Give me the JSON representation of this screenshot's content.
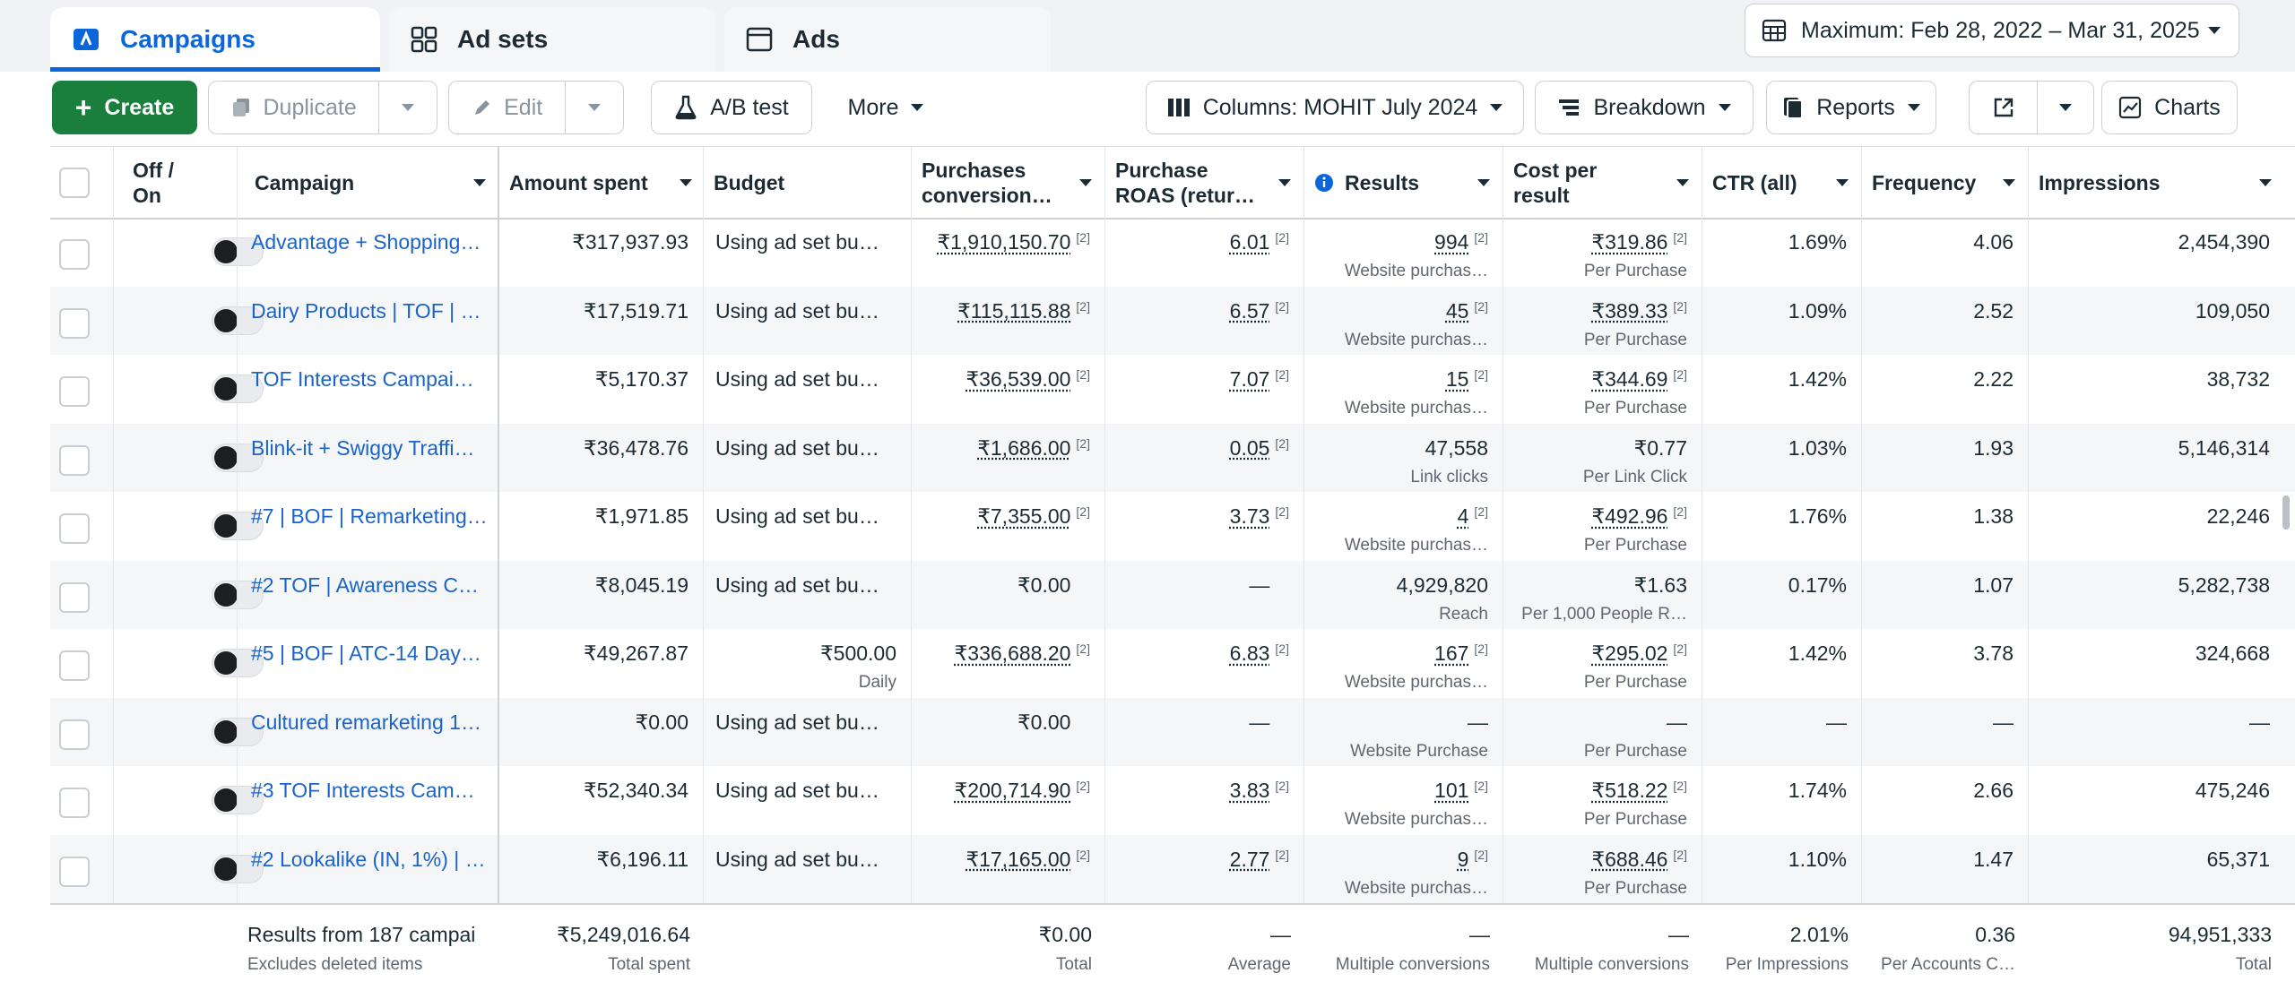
{
  "tabs": {
    "campaigns": "Campaigns",
    "adsets": "Ad sets",
    "ads": "Ads"
  },
  "date_range": "Maximum: Feb 28, 2022 – Mar 31, 2025",
  "toolbar": {
    "create": "Create",
    "duplicate": "Duplicate",
    "edit": "Edit",
    "ab_test": "A/B test",
    "more": "More",
    "columns": "Columns: MOHIT July 2024",
    "breakdown": "Breakdown",
    "reports": "Reports",
    "charts": "Charts"
  },
  "headers": {
    "off_on": "Off /\nOn",
    "campaign": "Campaign",
    "amount_spent": "Amount spent",
    "budget": "Budget",
    "purchases": "Purchases\nconversion…",
    "roas": "Purchase\nROAS (retur…",
    "results": "Results",
    "cost_per_result": "Cost per\nresult",
    "ctr": "CTR (all)",
    "frequency": "Frequency",
    "impressions": "Impressions"
  },
  "rows": [
    {
      "campaign": "Advantage + Shopping…",
      "spent": "₹317,937.93",
      "budget": "Using ad set bu…",
      "budget_sub": "",
      "purch": "₹1,910,150.70",
      "purch_ref": "[2]",
      "roas": "6.01",
      "roas_ref": "[2]",
      "results": "994",
      "results_ref": "[2]",
      "results_sub": "Website purchas…",
      "cpr": "₹319.86",
      "cpr_ref": "[2]",
      "cpr_sub": "Per Purchase",
      "ctr": "1.69%",
      "freq": "4.06",
      "impr": "2,454,390"
    },
    {
      "campaign": "Dairy Products | TOF | …",
      "spent": "₹17,519.71",
      "budget": "Using ad set bu…",
      "budget_sub": "",
      "purch": "₹115,115.88",
      "purch_ref": "[2]",
      "roas": "6.57",
      "roas_ref": "[2]",
      "results": "45",
      "results_ref": "[2]",
      "results_sub": "Website purchas…",
      "cpr": "₹389.33",
      "cpr_ref": "[2]",
      "cpr_sub": "Per Purchase",
      "ctr": "1.09%",
      "freq": "2.52",
      "impr": "109,050"
    },
    {
      "campaign": "TOF Interests Campai…",
      "spent": "₹5,170.37",
      "budget": "Using ad set bu…",
      "budget_sub": "",
      "purch": "₹36,539.00",
      "purch_ref": "[2]",
      "roas": "7.07",
      "roas_ref": "[2]",
      "results": "15",
      "results_ref": "[2]",
      "results_sub": "Website purchas…",
      "cpr": "₹344.69",
      "cpr_ref": "[2]",
      "cpr_sub": "Per Purchase",
      "ctr": "1.42%",
      "freq": "2.22",
      "impr": "38,732"
    },
    {
      "campaign": "Blink-it + Swiggy Traffi…",
      "spent": "₹36,478.76",
      "budget": "Using ad set bu…",
      "budget_sub": "",
      "purch": "₹1,686.00",
      "purch_ref": "[2]",
      "roas": "0.05",
      "roas_ref": "[2]",
      "results": "47,558",
      "results_ref": "",
      "results_sub": "Link clicks",
      "cpr": "₹0.77",
      "cpr_ref": "",
      "cpr_sub": "Per Link Click",
      "ctr": "1.03%",
      "freq": "1.93",
      "impr": "5,146,314"
    },
    {
      "campaign": "#7 | BOF | Remarketing…",
      "spent": "₹1,971.85",
      "budget": "Using ad set bu…",
      "budget_sub": "",
      "purch": "₹7,355.00",
      "purch_ref": "[2]",
      "roas": "3.73",
      "roas_ref": "[2]",
      "results": "4",
      "results_ref": "[2]",
      "results_sub": "Website purchas…",
      "cpr": "₹492.96",
      "cpr_ref": "[2]",
      "cpr_sub": "Per Purchase",
      "ctr": "1.76%",
      "freq": "1.38",
      "impr": "22,246"
    },
    {
      "campaign": "#2 TOF | Awareness C…",
      "spent": "₹8,045.19",
      "budget": "Using ad set bu…",
      "budget_sub": "",
      "purch": "₹0.00",
      "purch_ref": "",
      "roas": "—",
      "roas_ref": "",
      "results": "4,929,820",
      "results_ref": "",
      "results_sub": "Reach",
      "cpr": "₹1.63",
      "cpr_ref": "",
      "cpr_sub": "Per 1,000 People R…",
      "ctr": "0.17%",
      "freq": "1.07",
      "impr": "5,282,738"
    },
    {
      "campaign": "#5 | BOF | ATC-14 Day…",
      "spent": "₹49,267.87",
      "budget": "₹500.00",
      "budget_sub": "Daily",
      "purch": "₹336,688.20",
      "purch_ref": "[2]",
      "roas": "6.83",
      "roas_ref": "[2]",
      "results": "167",
      "results_ref": "[2]",
      "results_sub": "Website purchas…",
      "cpr": "₹295.02",
      "cpr_ref": "[2]",
      "cpr_sub": "Per Purchase",
      "ctr": "1.42%",
      "freq": "3.78",
      "impr": "324,668"
    },
    {
      "campaign": "Cultured remarketing 1…",
      "spent": "₹0.00",
      "budget": "Using ad set bu…",
      "budget_sub": "",
      "purch": "₹0.00",
      "purch_ref": "",
      "roas": "—",
      "roas_ref": "",
      "results": "—",
      "results_ref": "",
      "results_sub": "Website Purchase",
      "cpr": "—",
      "cpr_ref": "",
      "cpr_sub": "Per Purchase",
      "ctr": "—",
      "freq": "—",
      "impr": "—"
    },
    {
      "campaign": "#3 TOF Interests Cam…",
      "spent": "₹52,340.34",
      "budget": "Using ad set bu…",
      "budget_sub": "",
      "purch": "₹200,714.90",
      "purch_ref": "[2]",
      "roas": "3.83",
      "roas_ref": "[2]",
      "results": "101",
      "results_ref": "[2]",
      "results_sub": "Website purchas…",
      "cpr": "₹518.22",
      "cpr_ref": "[2]",
      "cpr_sub": "Per Purchase",
      "ctr": "1.74%",
      "freq": "2.66",
      "impr": "475,246"
    },
    {
      "campaign": "#2 Lookalike (IN, 1%) | …",
      "spent": "₹6,196.11",
      "budget": "Using ad set bu…",
      "budget_sub": "",
      "purch": "₹17,165.00",
      "purch_ref": "[2]",
      "roas": "2.77",
      "roas_ref": "[2]",
      "results": "9",
      "results_ref": "[2]",
      "results_sub": "Website purchas…",
      "cpr": "₹688.46",
      "cpr_ref": "[2]",
      "cpr_sub": "Per Purchase",
      "ctr": "1.10%",
      "freq": "1.47",
      "impr": "65,371"
    }
  ],
  "footer": {
    "campaign": "Results from 187 campai",
    "campaign_sub": "Excludes deleted items",
    "spent": "₹5,249,016.64",
    "spent_sub": "Total spent",
    "purch": "₹0.00",
    "purch_sub": "Total",
    "roas": "—",
    "roas_sub": "Average",
    "results": "—",
    "results_sub": "Multiple conversions",
    "cpr": "—",
    "cpr_sub": "Multiple conversions",
    "ctr": "2.01%",
    "ctr_sub": "Per Impressions",
    "freq": "0.36",
    "freq_sub": "Per Accounts C…",
    "impr": "94,951,333",
    "impr_sub": "Total"
  }
}
